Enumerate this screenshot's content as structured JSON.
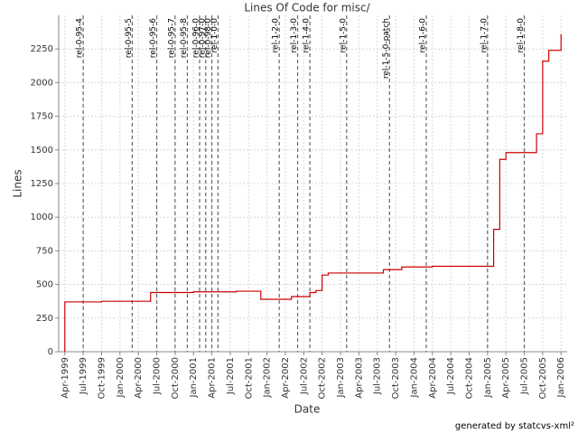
{
  "chart_data": {
    "type": "step",
    "title": "Lines Of Code for misc/",
    "x_label": "Date",
    "y_label": "Lines",
    "credit": "generated by statcvs-xml²",
    "grid": true,
    "x": [
      "1999-04",
      "1999-04",
      "1999-10",
      "2000-06",
      "2001-01",
      "2001-08",
      "2001-12",
      "2002-05",
      "2002-08",
      "2002-09",
      "2002-10",
      "2002-11",
      "2003-08",
      "2003-11",
      "2004-04",
      "2005-02",
      "2005-03",
      "2005-04",
      "2005-09",
      "2005-10",
      "2005-11",
      "2006-01",
      "2006-01"
    ],
    "series": [
      {
        "name": "misc/",
        "color": "#cc0000",
        "values": [
          0,
          370,
          375,
          440,
          445,
          450,
          390,
          410,
          440,
          455,
          570,
          585,
          610,
          630,
          635,
          910,
          1430,
          1480,
          1620,
          2160,
          2240,
          2260,
          2360
        ]
      }
    ],
    "markers": [
      {
        "label": "rel-0-95-4",
        "x": "1999-07"
      },
      {
        "label": "rel-0-95-5",
        "x": "2000-03"
      },
      {
        "label": "rel-0-95-6",
        "x": "2000-07"
      },
      {
        "label": "rel-0-95-7",
        "x": "2000-10"
      },
      {
        "label": "rel-0-95-8",
        "x": "2000-12"
      },
      {
        "label": "rel-0-96-0",
        "x": "2001-02"
      },
      {
        "label": "rel-0-97-0",
        "x": "2001-03"
      },
      {
        "label": "rel-0-98-0",
        "x": "2001-04"
      },
      {
        "label": "rel-1-0-0",
        "x": "2001-05"
      },
      {
        "label": "rel-1-2-0",
        "x": "2002-03"
      },
      {
        "label": "rel-1-3-0",
        "x": "2002-06"
      },
      {
        "label": "rel-1-4-0",
        "x": "2002-08"
      },
      {
        "label": "rel-1-5-0",
        "x": "2003-02"
      },
      {
        "label": "rel-1-5-0-patch",
        "x": "2003-09"
      },
      {
        "label": "rel-1-6-0",
        "x": "2004-03"
      },
      {
        "label": "rel-1-7-0",
        "x": "2005-01"
      },
      {
        "label": "rel-1-8-0",
        "x": "2005-07"
      }
    ],
    "xlim": [
      "1999-03",
      "2006-02"
    ],
    "xticks": [
      {
        "value": "1999-04",
        "label": "Apr-1999"
      },
      {
        "value": "1999-07",
        "label": "Jul-1999"
      },
      {
        "value": "1999-10",
        "label": "Oct-1999"
      },
      {
        "value": "2000-01",
        "label": "Jan-2000"
      },
      {
        "value": "2000-04",
        "label": "Apr-2000"
      },
      {
        "value": "2000-07",
        "label": "Jul-2000"
      },
      {
        "value": "2000-10",
        "label": "Oct-2000"
      },
      {
        "value": "2001-01",
        "label": "Jan-2001"
      },
      {
        "value": "2001-04",
        "label": "Apr-2001"
      },
      {
        "value": "2001-07",
        "label": "Jul-2001"
      },
      {
        "value": "2001-10",
        "label": "Oct-2001"
      },
      {
        "value": "2002-01",
        "label": "Jan-2002"
      },
      {
        "value": "2002-04",
        "label": "Apr-2002"
      },
      {
        "value": "2002-07",
        "label": "Jul-2002"
      },
      {
        "value": "2002-10",
        "label": "Oct-2002"
      },
      {
        "value": "2003-01",
        "label": "Jan-2003"
      },
      {
        "value": "2003-04",
        "label": "Apr-2003"
      },
      {
        "value": "2003-07",
        "label": "Jul-2003"
      },
      {
        "value": "2003-10",
        "label": "Oct-2003"
      },
      {
        "value": "2004-01",
        "label": "Jan-2004"
      },
      {
        "value": "2004-04",
        "label": "Apr-2004"
      },
      {
        "value": "2004-07",
        "label": "Jul-2004"
      },
      {
        "value": "2004-10",
        "label": "Oct-2004"
      },
      {
        "value": "2005-01",
        "label": "Jan-2005"
      },
      {
        "value": "2005-04",
        "label": "Apr-2005"
      },
      {
        "value": "2005-07",
        "label": "Jul-2005"
      },
      {
        "value": "2005-10",
        "label": "Oct-2005"
      },
      {
        "value": "2006-01",
        "label": "Jan-2006"
      }
    ],
    "ylim": [
      0,
      2500
    ],
    "yticks": [
      0,
      250,
      500,
      750,
      1000,
      1250,
      1500,
      1750,
      2000,
      2250
    ]
  }
}
